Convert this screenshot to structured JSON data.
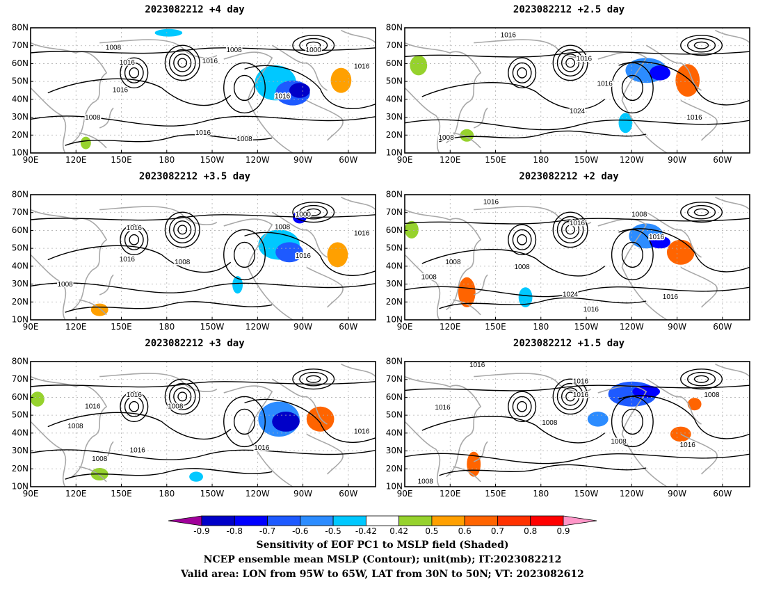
{
  "panels": [
    {
      "title": "2023082212  +4 day"
    },
    {
      "title": "2023082212  +2.5 day"
    },
    {
      "title": "2023082212  +3.5 day"
    },
    {
      "title": "2023082212  +2 day"
    },
    {
      "title": "2023082212  +3 day"
    },
    {
      "title": "2023082212  +1.5 day"
    }
  ],
  "map": {
    "lon_ticks": [
      "90E",
      "120E",
      "150E",
      "180",
      "150W",
      "120W",
      "90W",
      "60W"
    ],
    "lat_ticks": [
      "80N",
      "70N",
      "60N",
      "50N",
      "40N",
      "30N",
      "20N",
      "10N"
    ]
  },
  "colorbar": {
    "levels": [
      "-0.9",
      "-0.8",
      "-0.7",
      "-0.6",
      "-0.5",
      "-0.42",
      "0.42",
      "0.5",
      "0.6",
      "0.7",
      "0.8",
      "0.9"
    ],
    "colors": [
      "#a0009a",
      "#0000c8",
      "#0000ff",
      "#1e5aff",
      "#2c8cff",
      "#00c8ff",
      "#ffffff",
      "#96d22d",
      "#ffa000",
      "#ff6400",
      "#ff3200",
      "#ff0000",
      "#ff96c8"
    ]
  },
  "captions": {
    "line1": "Sensitivity of EOF PC1 to MSLP field (Shaded)",
    "line2": "NCEP ensemble mean MSLP (Contour); unit(mb); IT:2023082212",
    "line3": "Valid area: LON from 95W to 65W, LAT from 30N to 50N; VT: 2023082612"
  },
  "contour_labels": [
    [
      "1008",
      "1008",
      "1016",
      "1016",
      "1016",
      "1016",
      "1008",
      "1000",
      "1016",
      "1016",
      "1008"
    ],
    [
      "1016",
      "1016",
      "1016",
      "1024",
      "1008",
      "1016"
    ],
    [
      "1016",
      "1016",
      "1008",
      "1008",
      "1000",
      "1016",
      "1016",
      "1008"
    ],
    [
      "1016",
      "1008",
      "1016",
      "1008",
      "1024",
      "1016",
      "1016",
      "1016",
      "1008",
      "1008"
    ],
    [
      "1016",
      "1008",
      "1016",
      "1016",
      "1008",
      "1016",
      "1016",
      "1008"
    ],
    [
      "1016",
      "1016",
      "1016",
      "1016",
      "1008",
      "1008",
      "1016",
      "1008",
      "1008"
    ]
  ]
}
